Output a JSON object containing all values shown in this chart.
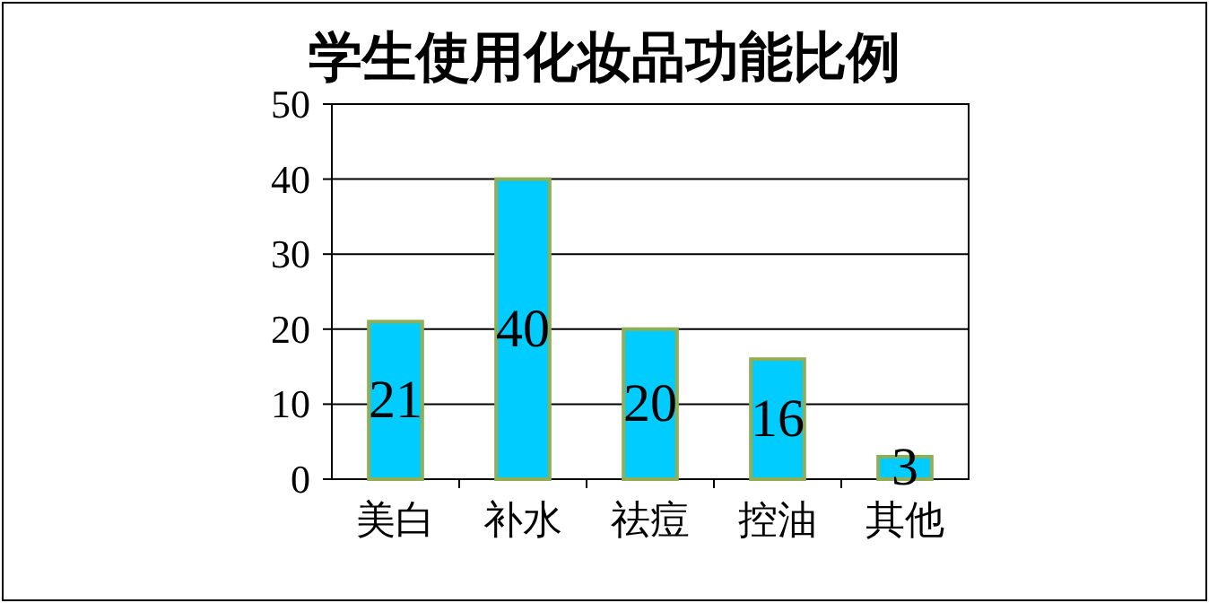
{
  "chart_data": {
    "type": "bar",
    "title": "学生使用化妆品功能比例",
    "categories": [
      "美白",
      "补水",
      "祛痘",
      "控油",
      "其他"
    ],
    "values": [
      21,
      40,
      20,
      16,
      3
    ],
    "color": "#00ccff",
    "ylim": [
      0,
      50
    ],
    "yticks": [
      0,
      10,
      20,
      30,
      40,
      50
    ],
    "grid": "y",
    "data_labels": true
  }
}
